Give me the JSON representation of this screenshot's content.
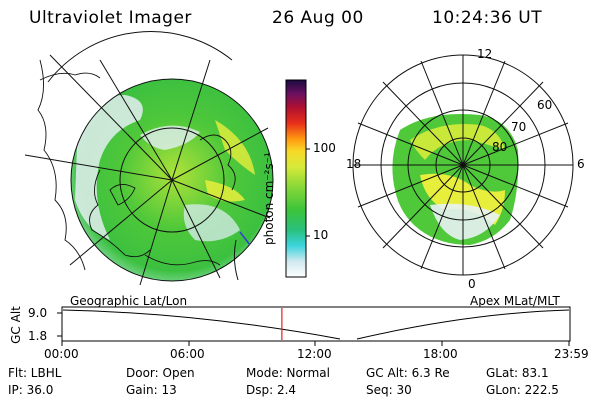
{
  "header": {
    "title": "Ultraviolet Imager",
    "date": "26 Aug 00",
    "time": "10:24:36 UT"
  },
  "colorbar": {
    "unit_label": "photon cm⁻²s⁻¹",
    "ticks": [
      "100",
      "10"
    ]
  },
  "geo_map": {
    "label": "Geographic Lat/Lon"
  },
  "polar_plot": {
    "label": "Apex MLat/MLT",
    "mlt_labels": [
      "12",
      "18",
      "6",
      "0"
    ],
    "lat_labels": [
      "60",
      "70",
      "80"
    ]
  },
  "altitude_strip": {
    "axis_label": "GC Alt",
    "y_ticks": [
      "9.0",
      "1.8"
    ],
    "time_ticks": [
      "00:00",
      "06:00",
      "12:00",
      "18:00",
      "23:59"
    ],
    "marker_time_fraction": 0.4337
  },
  "status": {
    "row1": {
      "flt": "Flt: LBHL",
      "door": "Door: Open",
      "mode": "Mode: Normal",
      "gc_alt": "GC Alt: 6.3 Re",
      "glat": "GLat:  83.1"
    },
    "row2": {
      "ip": "IP: 36.0",
      "gain": "Gain: 13",
      "dsp": "Dsp:    2.4",
      "seq": "Seq: 30",
      "glon": "GLon: 222.5"
    }
  },
  "colors": {
    "green": "#4fc83a",
    "yellow_green": "#b8e23a",
    "yellow": "#e8ee3c",
    "cyan": "#3ad4dc",
    "light": "#e8f2f4",
    "orange": "#ff9a10",
    "red": "#e0101a",
    "marker": "#e02020"
  }
}
